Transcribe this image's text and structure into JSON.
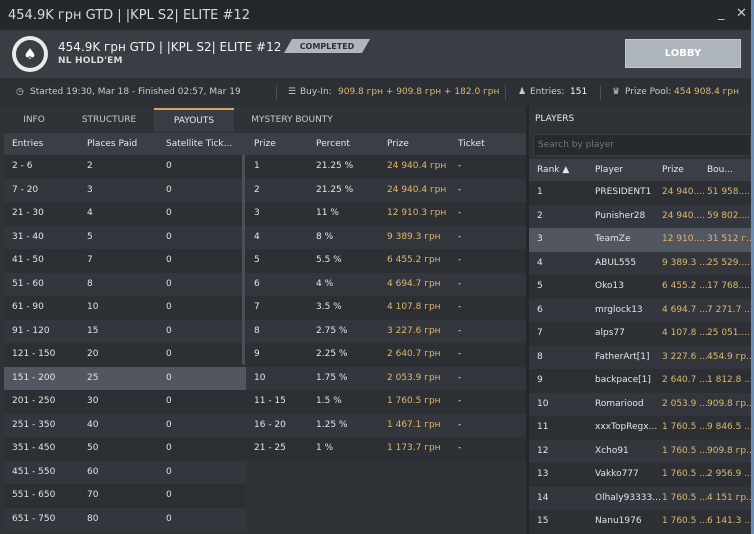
{
  "window": {
    "title": "454.9K грн GTD | |KPL S2| ELITE #12",
    "minimize": "_",
    "close": "✕"
  },
  "header": {
    "title": "454.9K грн GTD | |KPL S2| ELITE #12",
    "game": "NL HOLD'EM",
    "status": "COMPLETED",
    "lobby_label": "LOBBY"
  },
  "info": {
    "schedule": "Started 19:30, Mar 18  -  Finished 02:57, Mar 19",
    "buyin_label": "Buy-In:",
    "buyin_value": "909.8 грн + 909.8 грн + 182.0 грн",
    "entries_label": "Entries:",
    "entries_value": "151",
    "prizepool_label": "Prize Pool:",
    "prizepool_value": "454 908.4 грн"
  },
  "tabs": [
    "INFO",
    "STRUCTURE",
    "PAYOUTS",
    "MYSTERY BOUNTY"
  ],
  "active_tab": "PAYOUTS",
  "payout_structure": {
    "headers": [
      "Entries",
      "Places Paid",
      "Satellite Tick..."
    ],
    "rows": [
      [
        "2 - 6",
        "2",
        "0"
      ],
      [
        "7 - 20",
        "3",
        "0"
      ],
      [
        "21 - 30",
        "4",
        "0"
      ],
      [
        "31 - 40",
        "5",
        "0"
      ],
      [
        "41 - 50",
        "7",
        "0"
      ],
      [
        "51 - 60",
        "8",
        "0"
      ],
      [
        "61 - 90",
        "10",
        "0"
      ],
      [
        "91 - 120",
        "15",
        "0"
      ],
      [
        "121 - 150",
        "20",
        "0"
      ],
      [
        "151 - 200",
        "25",
        "0"
      ],
      [
        "201 - 250",
        "30",
        "0"
      ],
      [
        "251 - 350",
        "40",
        "0"
      ],
      [
        "351 - 450",
        "50",
        "0"
      ],
      [
        "451 - 550",
        "60",
        "0"
      ],
      [
        "551 - 650",
        "70",
        "0"
      ],
      [
        "651 - 750",
        "80",
        "0"
      ]
    ],
    "highlight_row": 9
  },
  "prizes": {
    "headers": [
      "Prize",
      "Percent",
      "Prize",
      "Ticket"
    ],
    "rows": [
      [
        "1",
        "21.25 %",
        "24 940.4 грн",
        "-"
      ],
      [
        "2",
        "21.25 %",
        "24 940.4 грн",
        "-"
      ],
      [
        "3",
        "11 %",
        "12 910.3 грн",
        "-"
      ],
      [
        "4",
        "8 %",
        "9 389.3 грн",
        "-"
      ],
      [
        "5",
        "5.5 %",
        "6 455.2 грн",
        "-"
      ],
      [
        "6",
        "4 %",
        "4 694.7 грн",
        "-"
      ],
      [
        "7",
        "3.5 %",
        "4 107.8 грн",
        "-"
      ],
      [
        "8",
        "2.75 %",
        "3 227.6 грн",
        "-"
      ],
      [
        "9",
        "2.25 %",
        "2 640.7 грн",
        "-"
      ],
      [
        "10",
        "1.75 %",
        "2 053.9 грн",
        "-"
      ],
      [
        "11 - 15",
        "1.5 %",
        "1 760.5 грн",
        "-"
      ],
      [
        "16 - 20",
        "1.25 %",
        "1 467.1 грн",
        "-"
      ],
      [
        "21 - 25",
        "1 %",
        "1 173.7 грн",
        "-"
      ]
    ]
  },
  "players": {
    "title": "PLAYERS",
    "search_placeholder": "Search by player",
    "headers": [
      "Rank ▲",
      "Player",
      "Prize",
      "Bou..."
    ],
    "rows": [
      [
        "1",
        "PRESIDENT1",
        "24 940....",
        "51 958...."
      ],
      [
        "2",
        "Punisher28",
        "24 940....",
        "59 802...."
      ],
      [
        "3",
        "TeamZe",
        "12 910....",
        "31 512 г..."
      ],
      [
        "4",
        "ABUL555",
        "9 389.3 ...",
        "25 529...."
      ],
      [
        "5",
        "Oko13",
        "6 455.2 ...",
        "17 768...."
      ],
      [
        "6",
        "mrglock13",
        "4 694.7 ...",
        "7 271.7 ..."
      ],
      [
        "7",
        "alps77",
        "4 107.8 ...",
        "25 051...."
      ],
      [
        "8",
        "FatherArt[1]",
        "3 227.6 ...",
        "454.9 гр..."
      ],
      [
        "9",
        "backpace[1]",
        "2 640.7 ...",
        "1 812.8 ..."
      ],
      [
        "10",
        "Romariood",
        "2 053.9 ...",
        "909.8 гр..."
      ],
      [
        "11",
        "xxxTopRegx...",
        "1 760.5 ...",
        "9 846.5 ..."
      ],
      [
        "12",
        "Xcho91",
        "1 760.5 ...",
        "909.8 гр..."
      ],
      [
        "13",
        "Vakko777",
        "1 760.5 ...",
        "2 956.9 ..."
      ],
      [
        "14",
        "Olhaly93333...",
        "1 760.5 ...",
        "4 151 гр..."
      ],
      [
        "15",
        "Nanu1976",
        "1 760.5 ...",
        "6 141.3 ..."
      ]
    ],
    "highlight_row": 2
  }
}
